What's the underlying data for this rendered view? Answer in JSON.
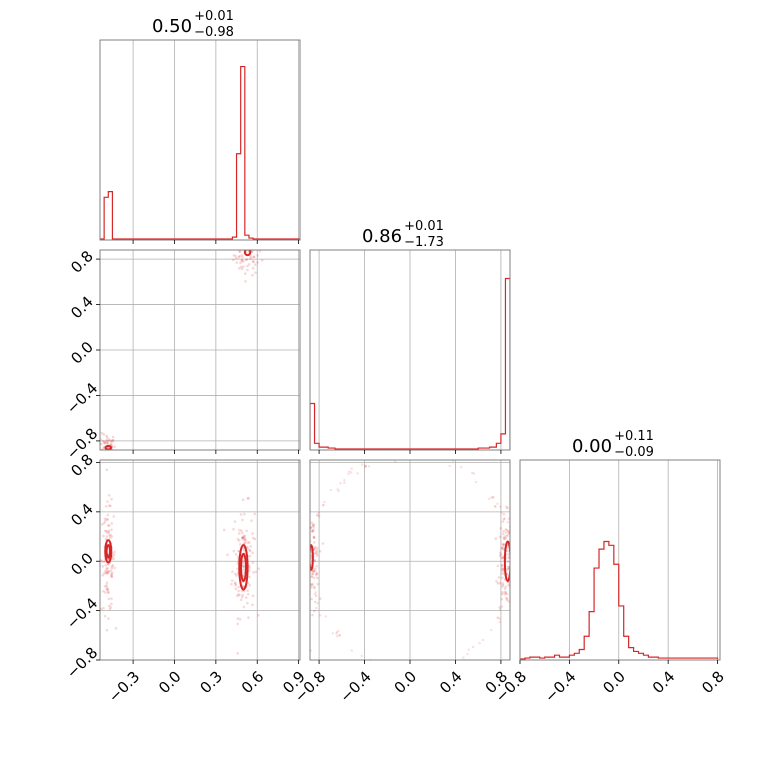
{
  "chart_data": {
    "type": "corner",
    "color": "#d62728",
    "grid": true,
    "parameters": [
      {
        "title": {
          "value": "0.50",
          "plus": "+0.01",
          "minus": "−0.98"
        },
        "range": [
          -0.54,
          0.91
        ],
        "ticks": [
          -0.3,
          0.0,
          0.3,
          0.6,
          0.9
        ],
        "tick_labels": [
          "−0.3",
          "0.0",
          "0.3",
          "0.6",
          "0.9"
        ]
      },
      {
        "title": {
          "value": "0.86",
          "plus": "+0.01",
          "minus": "−1.73"
        },
        "range": [
          -0.88,
          0.88
        ],
        "ticks": [
          -0.8,
          -0.4,
          0.0,
          0.4,
          0.8
        ],
        "tick_labels": [
          "−0.8",
          "−0.4",
          "0.0",
          "0.4",
          "0.8"
        ]
      },
      {
        "title": {
          "value": "0.00",
          "plus": "+0.11",
          "minus": "−0.09"
        },
        "range": [
          -0.8,
          0.82
        ],
        "ticks": [
          -0.8,
          -0.4,
          0.0,
          0.4,
          0.8
        ],
        "tick_labels": [
          "−0.8",
          "−0.4",
          "0.0",
          "0.4",
          "0.8"
        ]
      }
    ],
    "histograms": [
      {
        "param": 0,
        "edges": [
          -0.54,
          -0.51,
          -0.48,
          -0.45,
          -0.42,
          0.42,
          0.45,
          0.48,
          0.51,
          0.54,
          0.57,
          0.91
        ],
        "counts": [
          0,
          0.22,
          0.25,
          0,
          0,
          0.01,
          0.45,
          0.91,
          0.02,
          0.005,
          0
        ]
      },
      {
        "param": 1,
        "edges": [
          -0.88,
          -0.84,
          -0.8,
          -0.76,
          -0.72,
          -0.66,
          0.6,
          0.7,
          0.76,
          0.8,
          0.84,
          0.88
        ],
        "counts": [
          0.24,
          0.03,
          0.01,
          0.01,
          0.005,
          0,
          0.005,
          0.01,
          0.03,
          0.08,
          0.9
        ]
      },
      {
        "param": 2,
        "x_start": -0.8,
        "bin_width": 0.04,
        "counts": [
          0,
          0.005,
          0.01,
          0.01,
          0.005,
          0.01,
          0.01,
          0.02,
          0.01,
          0.01,
          0.02,
          0.03,
          0.05,
          0.12,
          0.25,
          0.48,
          0.58,
          0.62,
          0.6,
          0.5,
          0.28,
          0.12,
          0.06,
          0.04,
          0.03,
          0.02,
          0.01,
          0.01,
          0.005,
          0.005,
          0.005,
          0.005,
          0.005,
          0.005,
          0.005,
          0.005,
          0.005,
          0.005,
          0.005,
          0.005
        ]
      }
    ],
    "scatter_2d": [
      {
        "x_param": 0,
        "y_param": 1,
        "clusters": [
          {
            "center": [
              0.53,
              0.84
            ],
            "spread": [
              0.05,
              0.09
            ],
            "n": 80
          },
          {
            "center": [
              -0.49,
              -0.84
            ],
            "spread": [
              0.03,
              0.05
            ],
            "n": 50
          }
        ],
        "contours": [
          {
            "center": [
              0.53,
              0.86
            ],
            "radii": [
              0.02,
              0.025
            ]
          },
          {
            "center": [
              -0.48,
              -0.86
            ],
            "radii": [
              0.02,
              0.015
            ]
          }
        ]
      },
      {
        "x_param": 0,
        "y_param": 2,
        "clusters": [
          {
            "center": [
              0.5,
              0.0
            ],
            "spread": [
              0.04,
              0.22
            ],
            "n": 140
          },
          {
            "center": [
              -0.48,
              0.02
            ],
            "spread": [
              0.025,
              0.22
            ],
            "n": 120
          }
        ],
        "contours": [
          {
            "center": [
              0.5,
              -0.05
            ],
            "radii": [
              0.03,
              0.18
            ]
          },
          {
            "center": [
              0.5,
              -0.05
            ],
            "radii": [
              0.018,
              0.11
            ]
          },
          {
            "center": [
              -0.48,
              0.08
            ],
            "radii": [
              0.022,
              0.09
            ]
          },
          {
            "center": [
              -0.48,
              0.08
            ],
            "radii": [
              0.012,
              0.05
            ]
          }
        ]
      },
      {
        "x_param": 1,
        "y_param": 2,
        "clusters": [
          {
            "center": [
              0.84,
              0.0
            ],
            "spread": [
              0.03,
              0.18
            ],
            "n": 110
          },
          {
            "center": [
              -0.86,
              0.0
            ],
            "spread": [
              0.03,
              0.18
            ],
            "n": 90
          }
        ],
        "arcs": [
          {
            "side": "right",
            "radius": 0.9,
            "n": 70
          },
          {
            "side": "left",
            "radius": 0.88,
            "n": 70
          }
        ],
        "contours": [
          {
            "center": [
              0.86,
              0.0
            ],
            "radii": [
              0.025,
              0.16
            ]
          },
          {
            "center": [
              -0.87,
              0.03
            ],
            "radii": [
              0.015,
              0.1
            ]
          }
        ]
      }
    ]
  }
}
